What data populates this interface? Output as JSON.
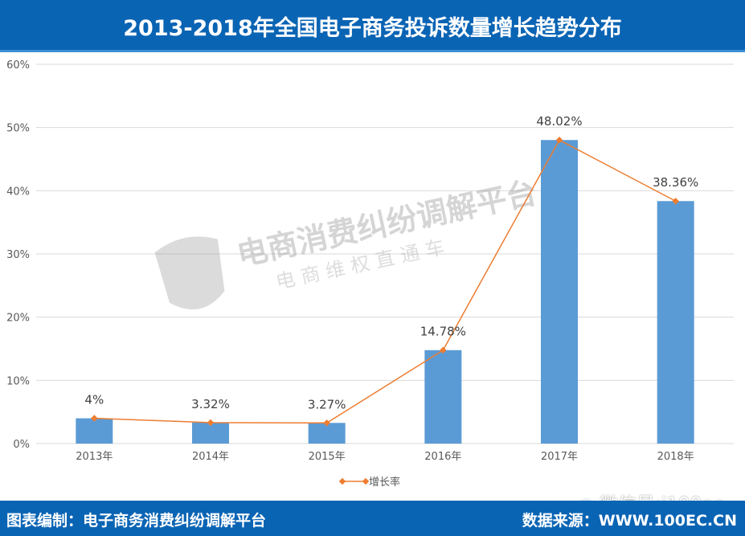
{
  "header": {
    "title": "2013-2018年全国电子商务投诉数量增长趋势分布"
  },
  "footer": {
    "left": "图表编制：电子商务消费纠纷调解平台",
    "right": "数据来源：WWW.100EC.CN",
    "wechat": "微信号:i100ec"
  },
  "watermark": {
    "line1": "电商消费纠纷调解平台",
    "line2": "电 商 维 权 直 通 车"
  },
  "colors": {
    "header": "#0a64b4",
    "bar": "#5b9bd5",
    "line": "#ed7d31",
    "grid": "#d9d9d9"
  },
  "chart_data": {
    "type": "bar",
    "title": "2013-2018年全国电子商务投诉数量增长趋势分布",
    "categories": [
      "2013年",
      "2014年",
      "2015年",
      "2016年",
      "2017年",
      "2018年"
    ],
    "series": [
      {
        "name": "增长率",
        "kind": "bar+line",
        "values": [
          4.0,
          3.32,
          3.27,
          14.78,
          48.02,
          38.36
        ]
      }
    ],
    "data_labels": [
      "4%",
      "3.32%",
      "3.27%",
      "14.78%",
      "48.02%",
      "38.36%"
    ],
    "yticks": [
      "0%",
      "10%",
      "20%",
      "30%",
      "40%",
      "50%",
      "60%"
    ],
    "ylim": [
      0,
      60
    ],
    "xlabel": "",
    "ylabel": "",
    "grid": true,
    "legend": {
      "position": "bottom",
      "entries": [
        "增长率"
      ]
    }
  }
}
